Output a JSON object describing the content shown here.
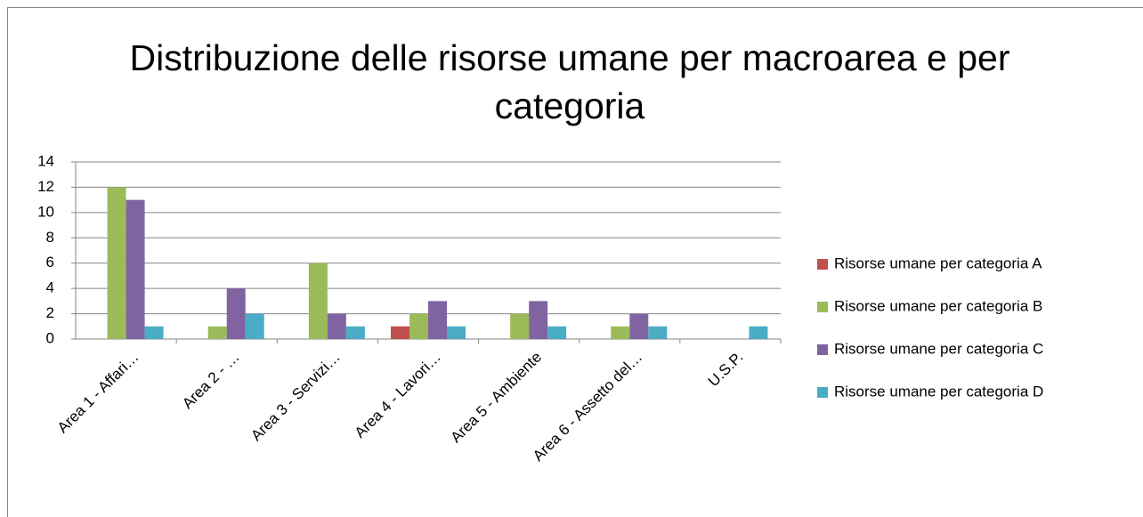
{
  "chart_data": {
    "type": "bar",
    "title": "Distribuzione delle risorse umane per macroarea e per categoria",
    "categories": [
      "Area 1 - Affari…",
      "Area 2 - …",
      "Area 3 - Servizi…",
      "Area 4 - Lavori…",
      "Area 5 - Ambiente",
      "Area 6 - Assetto del…",
      "U.S.P."
    ],
    "series": [
      {
        "name": "Risorse umane per categoria A",
        "color": "#c0504d",
        "values": [
          0,
          0,
          0,
          1,
          0,
          0,
          0
        ]
      },
      {
        "name": "Risorse umane per categoria B",
        "color": "#9bbb59",
        "values": [
          12,
          1,
          6,
          2,
          2,
          1,
          0
        ]
      },
      {
        "name": "Risorse umane per categoria C",
        "color": "#8064a2",
        "values": [
          11,
          4,
          2,
          3,
          3,
          2,
          0
        ]
      },
      {
        "name": "Risorse umane per categoria D",
        "color": "#4bacc6",
        "values": [
          1,
          2,
          1,
          1,
          1,
          1,
          1
        ]
      }
    ],
    "ylim": [
      0,
      14
    ],
    "yticks": [
      0,
      2,
      4,
      6,
      8,
      10,
      12,
      14
    ],
    "grid": true,
    "legend": "right"
  }
}
